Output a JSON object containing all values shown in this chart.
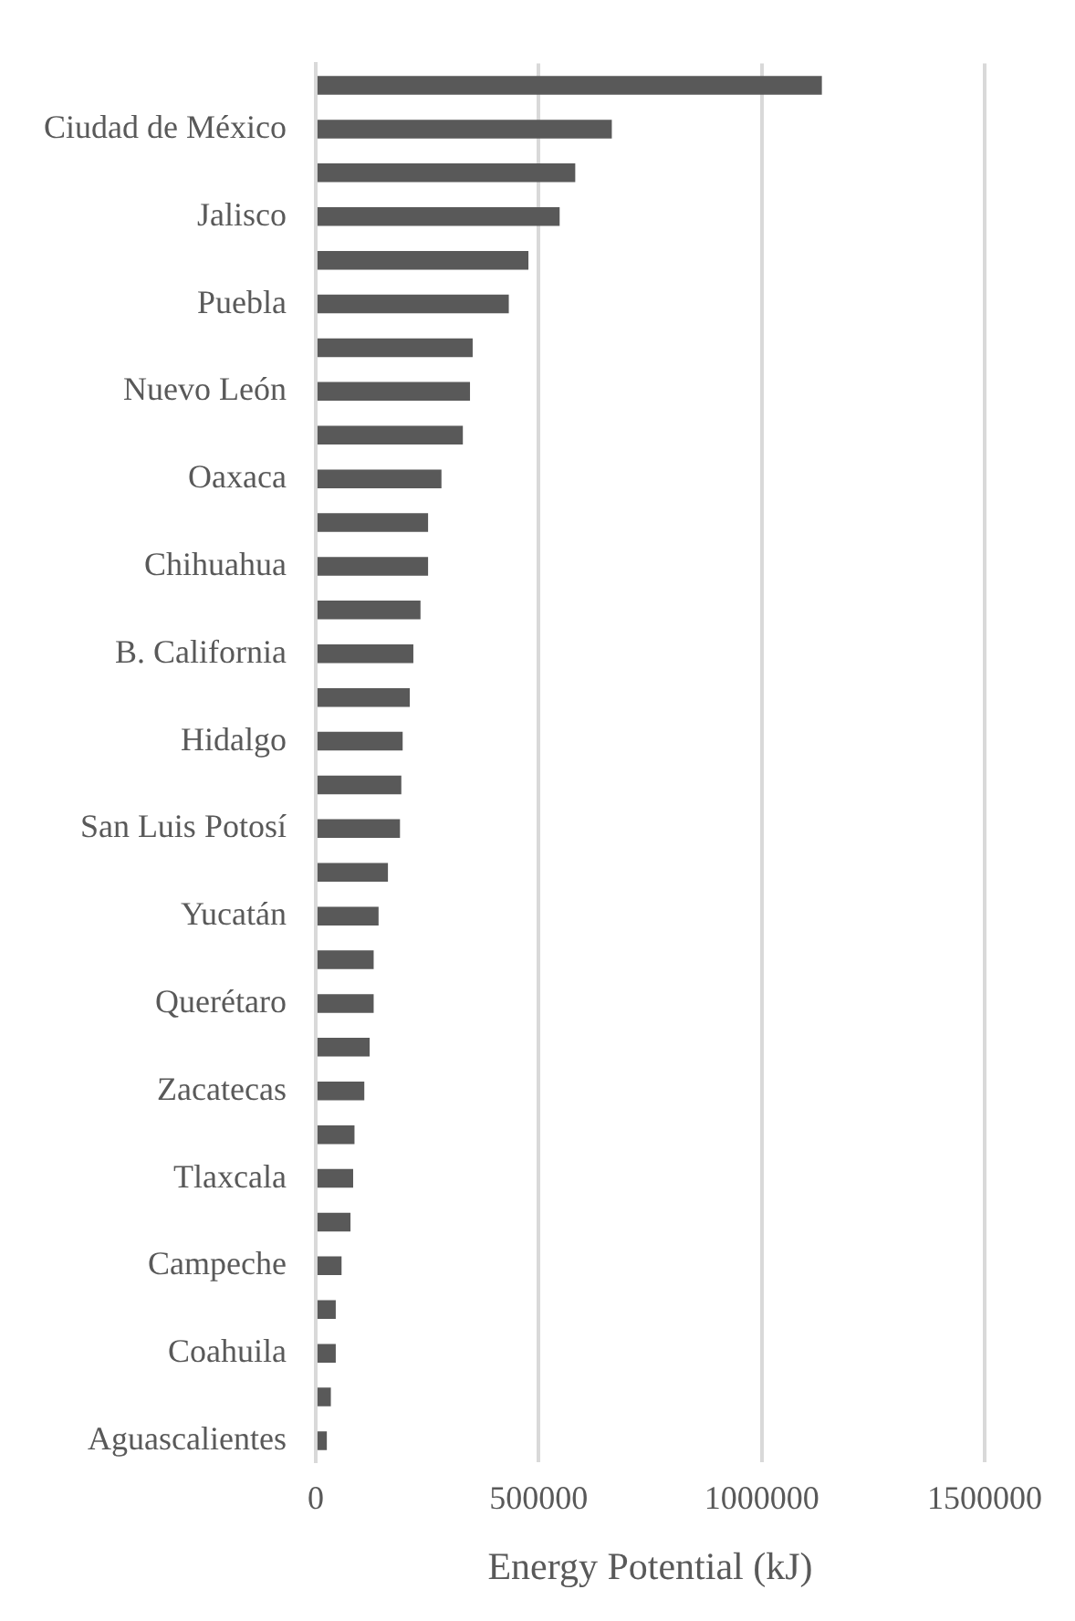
{
  "chart_data": {
    "type": "bar",
    "orientation": "horizontal",
    "xlabel": "Energy Potential (kJ)",
    "categories": [
      null,
      "Ciudad de México",
      null,
      "Jalisco",
      null,
      "Puebla",
      null,
      "Nuevo León",
      null,
      "Oaxaca",
      null,
      "Chihuahua",
      null,
      "B. California",
      null,
      "Hidalgo",
      null,
      "San Luis Potosí",
      null,
      "Yucatán",
      null,
      "Querétaro",
      null,
      "Zacatecas",
      null,
      "Tlaxcala",
      null,
      "Campeche",
      null,
      "Coahuila",
      null,
      "Aguascalientes"
    ],
    "values": [
      1135000,
      664000,
      582000,
      547000,
      477000,
      433000,
      352000,
      346000,
      330000,
      282000,
      252000,
      252000,
      235000,
      219000,
      211000,
      195000,
      192000,
      189000,
      162000,
      141000,
      130000,
      130000,
      121000,
      109000,
      87000,
      84000,
      78000,
      58000,
      45000,
      45000,
      34000,
      25000
    ],
    "color": "#595959",
    "xlim": [
      0,
      1500000
    ],
    "xticks": [
      0,
      500000,
      1000000,
      1500000
    ],
    "grid": "x"
  }
}
